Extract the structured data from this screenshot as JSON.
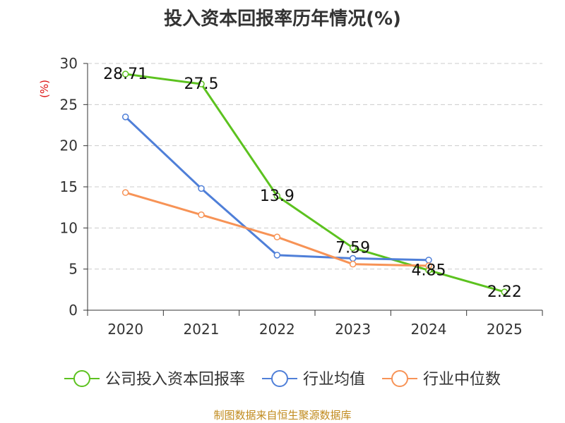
{
  "title": "投入资本回报率历年情况(%)",
  "source": "制图数据来自恒生聚源数据库",
  "colors": {
    "green": "#5cc21f",
    "blue": "#4f7fd8",
    "orange": "#f79356",
    "unit": "#dd1111",
    "source": "#c08a1c",
    "grid": "#cccccc",
    "axis": "#333333",
    "text": "#333333"
  },
  "chart_data": {
    "type": "line",
    "ylabel": "(%)",
    "categories": [
      "2020",
      "2021",
      "2022",
      "2023",
      "2024",
      "2025"
    ],
    "ylim": [
      0,
      30
    ],
    "yticks": [
      0,
      5,
      10,
      15,
      20,
      25,
      30
    ],
    "grid": true,
    "legend_position": "bottom",
    "series": [
      {
        "name": "公司投入资本回报率",
        "color": "#5cc21f",
        "values": [
          28.71,
          27.5,
          13.9,
          7.59,
          4.85,
          2.22
        ],
        "labels": [
          "28.71",
          "27.5",
          "13.9",
          "7.59",
          "4.85",
          "2.22"
        ],
        "show_labels": true
      },
      {
        "name": "行业均值",
        "color": "#4f7fd8",
        "values": [
          23.5,
          14.8,
          6.7,
          6.3,
          6.1,
          null
        ],
        "show_labels": false
      },
      {
        "name": "行业中位数",
        "color": "#f79356",
        "values": [
          14.3,
          11.6,
          8.9,
          5.6,
          5.4,
          null
        ],
        "show_labels": false
      }
    ]
  }
}
